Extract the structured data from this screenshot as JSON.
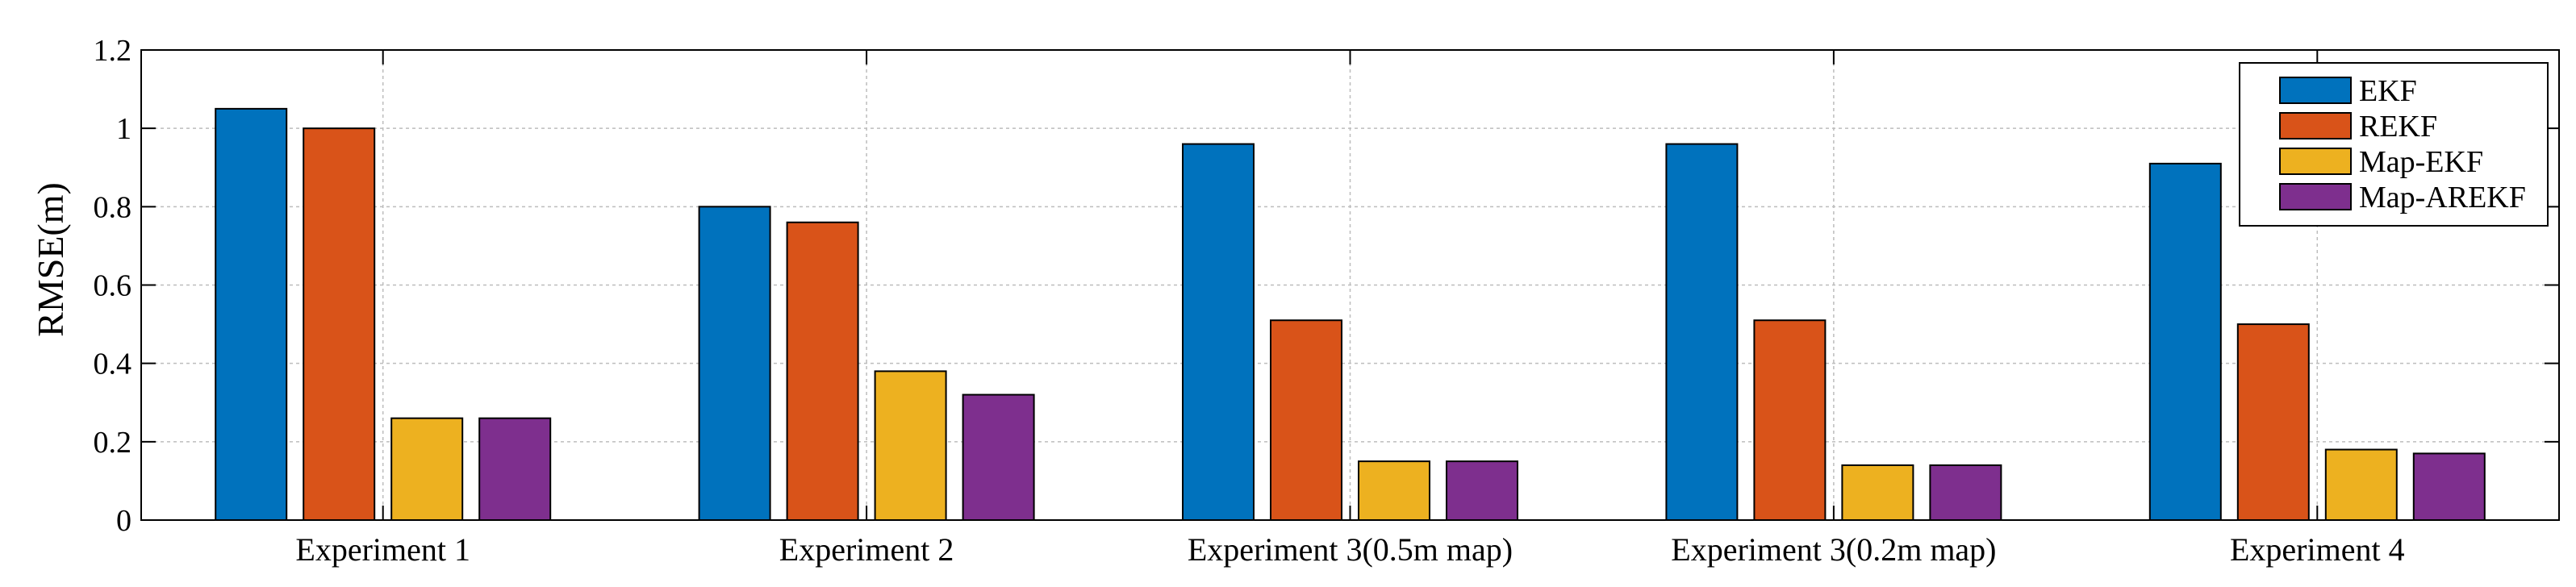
{
  "chart_data": {
    "type": "bar",
    "title": "",
    "xlabel": "",
    "ylabel": "RMSE(m)",
    "ylim": [
      0,
      1.2
    ],
    "yticks": [
      0,
      0.2,
      0.4,
      0.6,
      0.8,
      1,
      1.2
    ],
    "ytick_labels": [
      "0",
      "0.2",
      "0.4",
      "0.6",
      "0.8",
      "1",
      "1.2"
    ],
    "grid": true,
    "legend_position": "top-right",
    "categories": [
      "Experiment 1",
      "Experiment 2",
      "Experiment 3(0.5m map)",
      "Experiment 3(0.2m map)",
      "Experiment 4"
    ],
    "series": [
      {
        "name": "EKF",
        "color": "#0072BD",
        "values": [
          1.05,
          0.8,
          0.96,
          0.96,
          0.91
        ]
      },
      {
        "name": "REKF",
        "color": "#D95319",
        "values": [
          1.0,
          0.76,
          0.51,
          0.51,
          0.5
        ]
      },
      {
        "name": "Map-EKF",
        "color": "#EDB120",
        "values": [
          0.26,
          0.38,
          0.15,
          0.14,
          0.18
        ]
      },
      {
        "name": "Map-AREKF",
        "color": "#7E2F8E",
        "values": [
          0.26,
          0.32,
          0.15,
          0.14,
          0.17
        ]
      }
    ]
  }
}
